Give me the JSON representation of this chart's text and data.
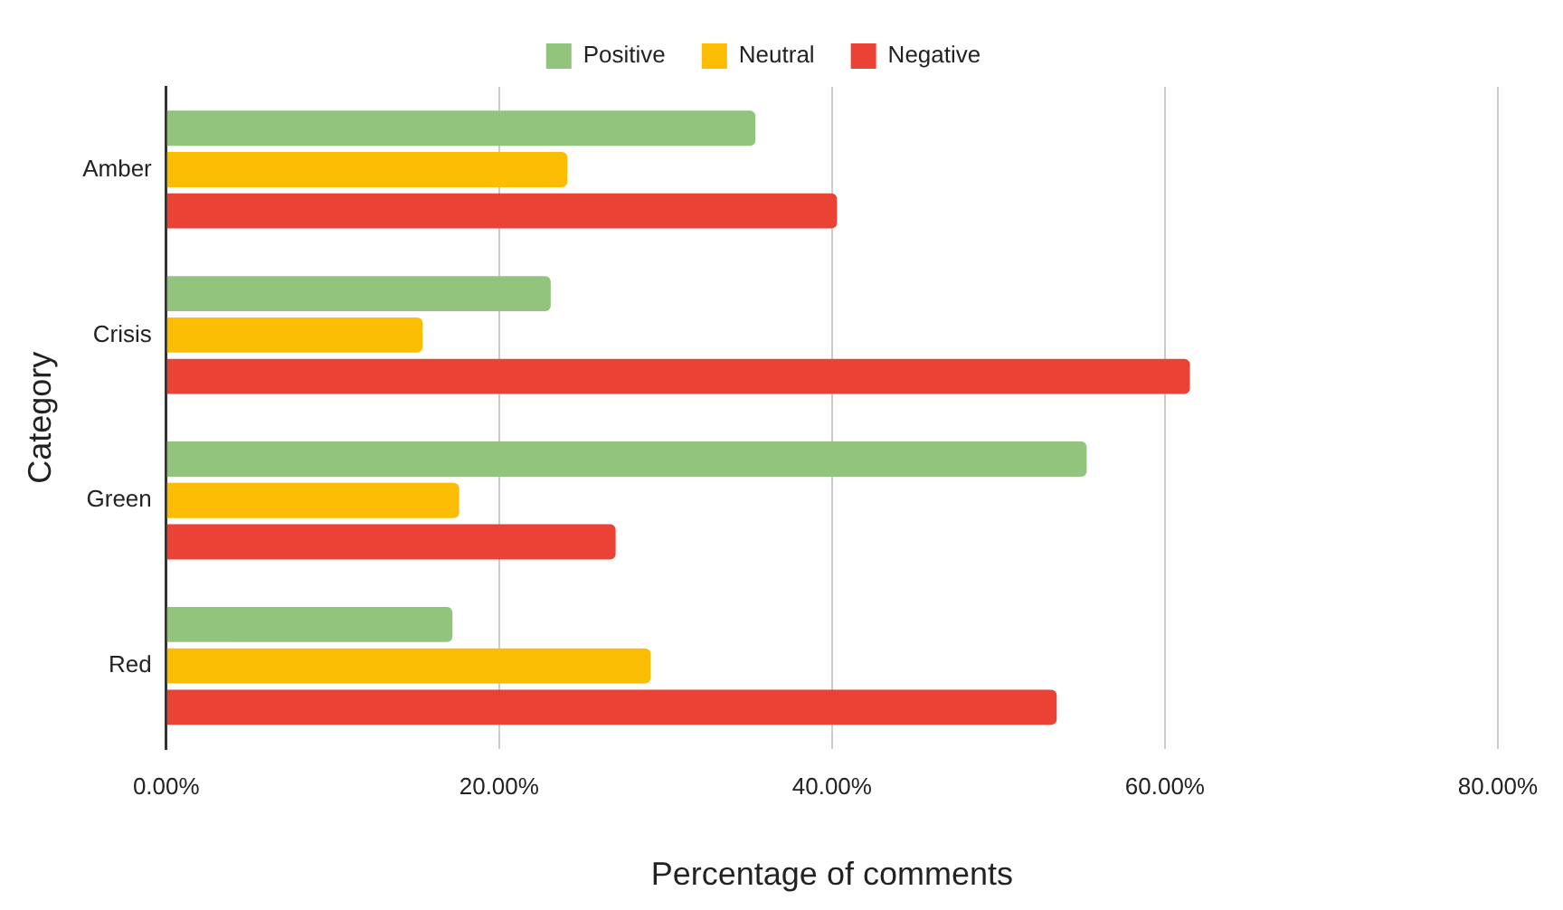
{
  "chart_data": {
    "type": "bar",
    "orientation": "horizontal",
    "xlabel": "Percentage of comments",
    "ylabel": "Category",
    "categories": [
      "Amber",
      "Crisis",
      "Green",
      "Red"
    ],
    "series": [
      {
        "name": "Positive",
        "color": "#93c47d",
        "values": [
          35.4,
          23.1,
          55.3,
          17.2
        ]
      },
      {
        "name": "Neutral",
        "color": "#fbbc04",
        "values": [
          24.1,
          15.4,
          17.6,
          29.1
        ]
      },
      {
        "name": "Negative",
        "color": "#ea4335",
        "values": [
          40.3,
          61.5,
          27.0,
          53.5
        ]
      }
    ],
    "xlim": [
      0,
      80
    ],
    "xticks": [
      {
        "value": 0,
        "label": "0.00%"
      },
      {
        "value": 20,
        "label": "20.00%"
      },
      {
        "value": 40,
        "label": "40.00%"
      },
      {
        "value": 60,
        "label": "60.00%"
      },
      {
        "value": 80,
        "label": "80.00%"
      }
    ],
    "grid": "x",
    "legend": "top"
  }
}
